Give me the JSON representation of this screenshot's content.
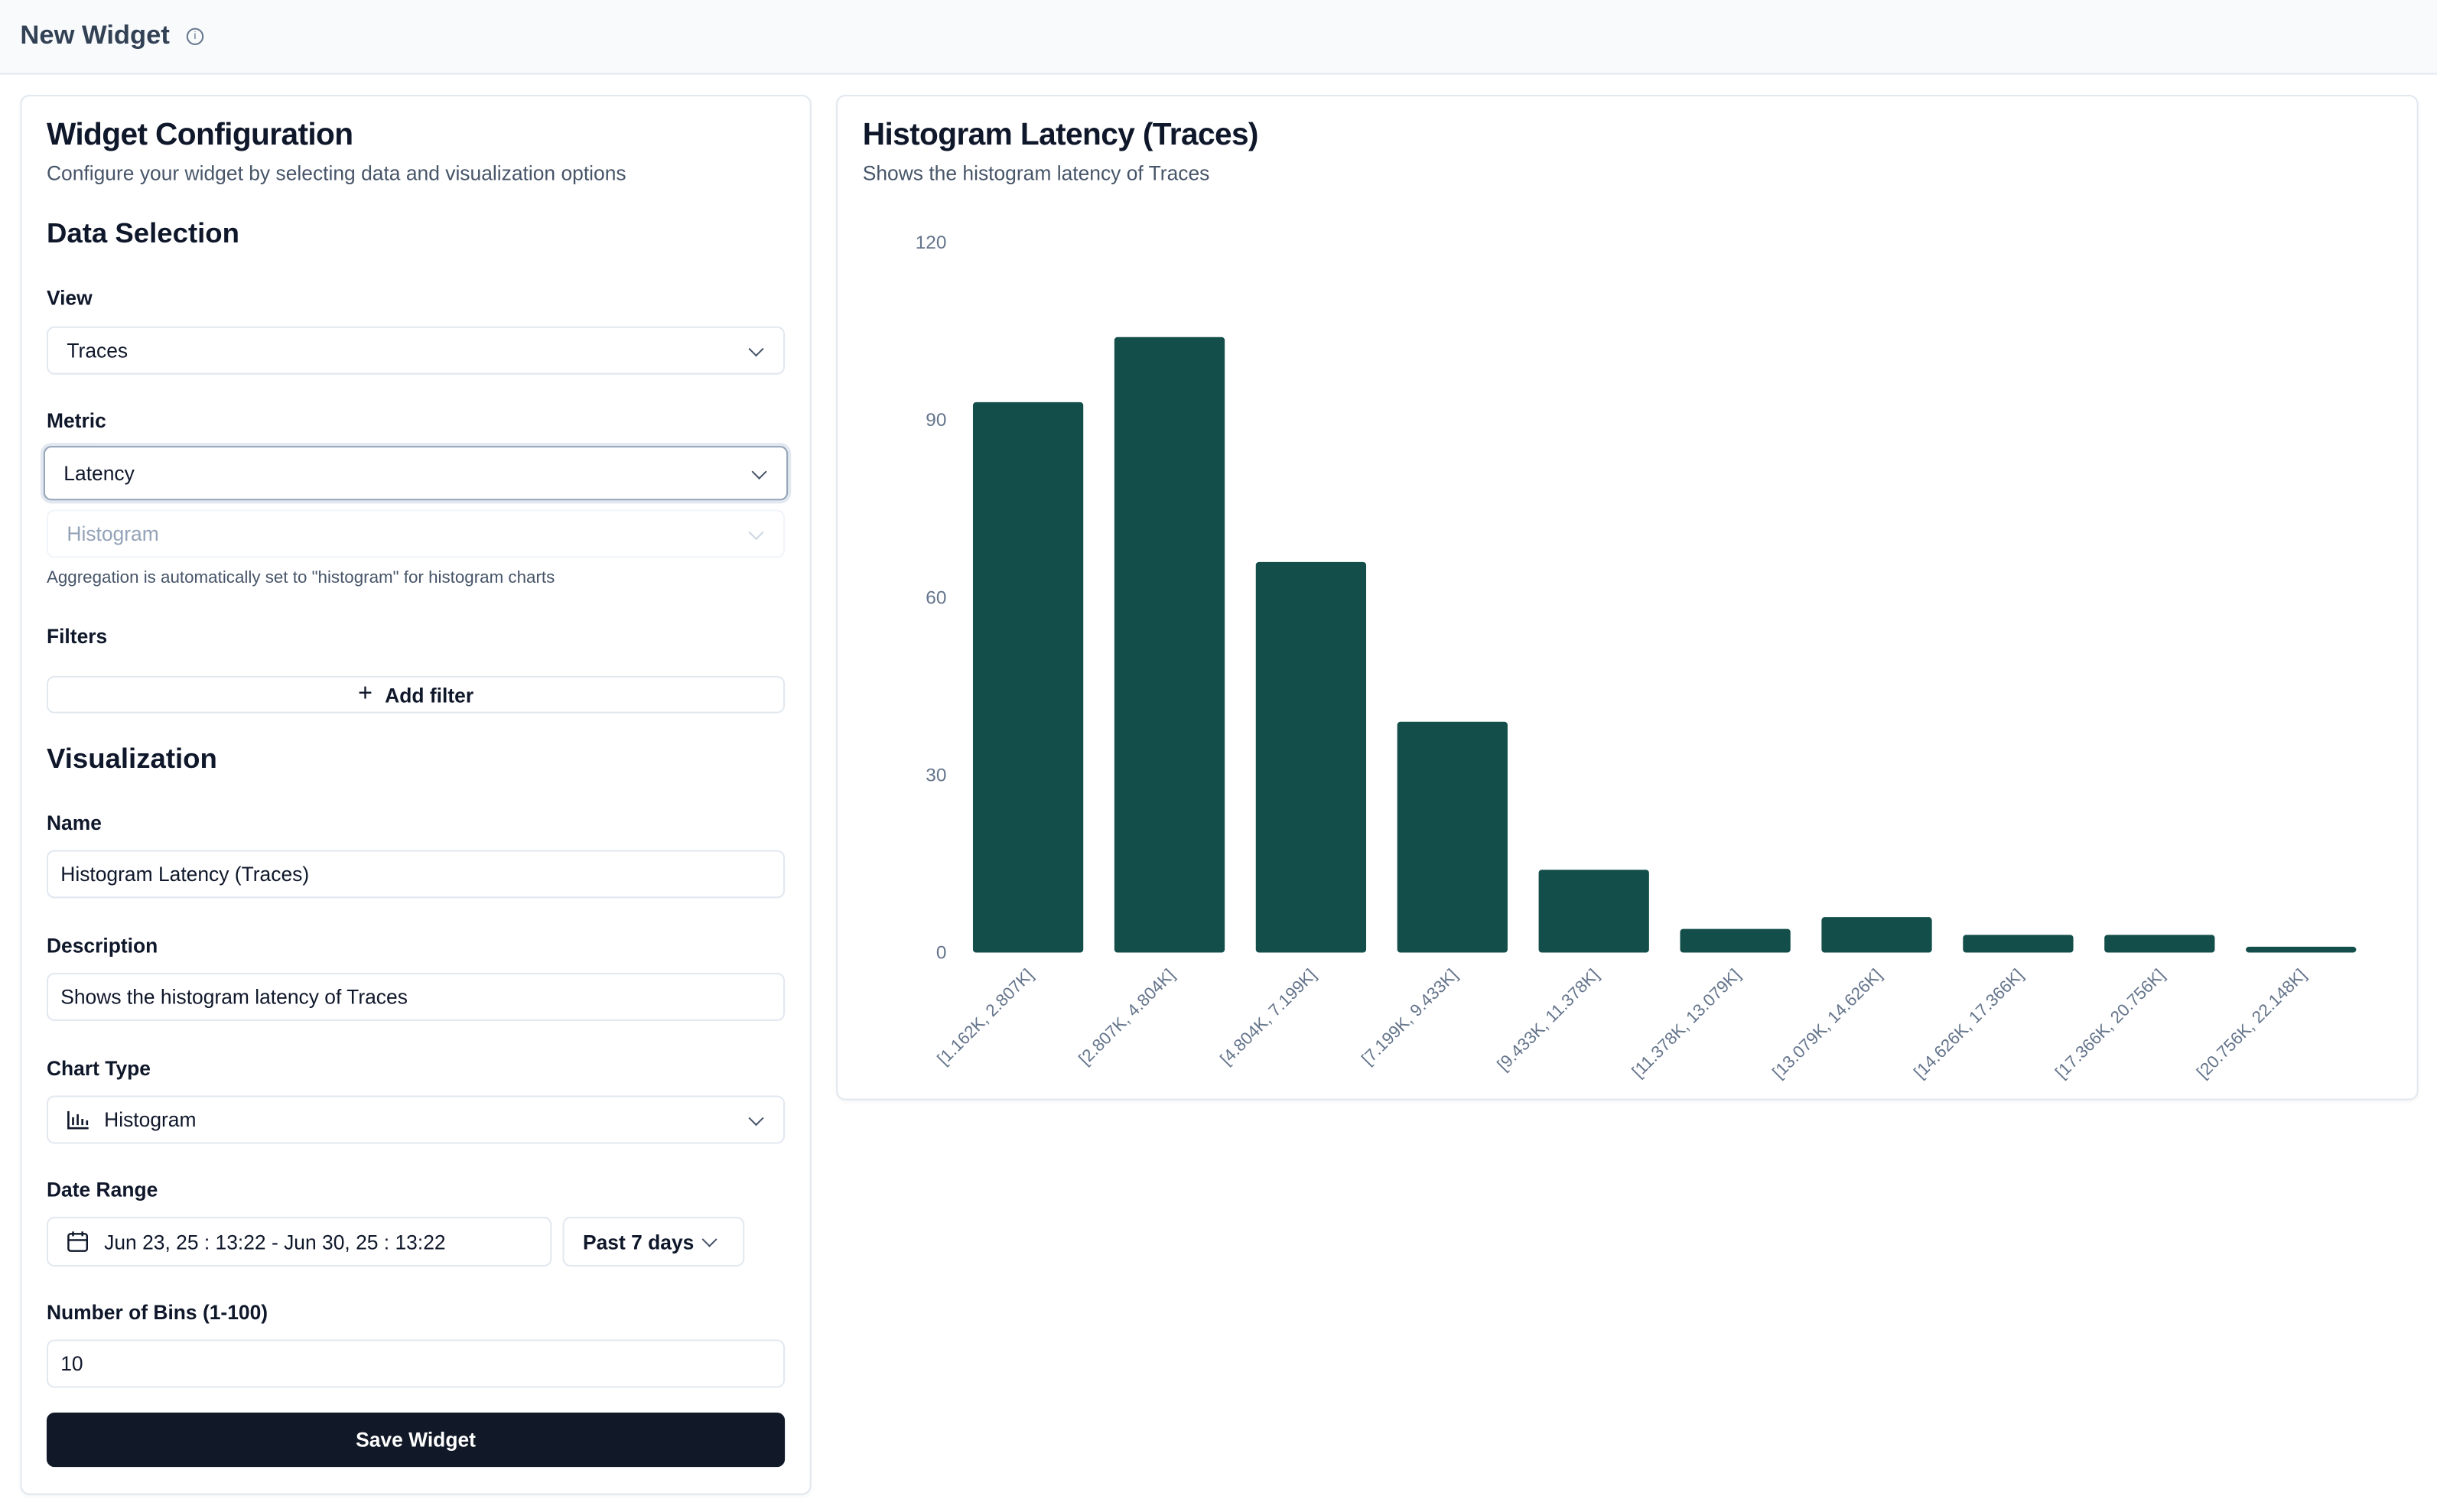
{
  "header": {
    "title": "New Widget",
    "info_icon": "info-icon"
  },
  "config": {
    "title": "Widget Configuration",
    "subtitle": "Configure your widget by selecting data and visualization options",
    "data_selection": "Data Selection",
    "view_label": "View",
    "view_value": "Traces",
    "metric_label": "Metric",
    "metric_value": "Latency",
    "aggregation_value": "Histogram",
    "aggregation_help": "Aggregation is automatically set to \"histogram\" for histogram charts",
    "filters_label": "Filters",
    "add_filter": "Add filter",
    "visualization": "Visualization",
    "name_label": "Name",
    "name_value": "Histogram Latency (Traces)",
    "description_label": "Description",
    "description_value": "Shows the histogram latency of Traces",
    "chart_type_label": "Chart Type",
    "chart_type_value": "Histogram",
    "date_range_label": "Date Range",
    "date_range_value": "Jun 23, 25 : 13:22 - Jun 30, 25 : 13:22",
    "date_preset": "Past 7 days",
    "bins_label": "Number of Bins (1-100)",
    "bins_value": "10",
    "save": "Save Widget"
  },
  "preview": {
    "title": "Histogram Latency (Traces)",
    "subtitle": "Shows the histogram latency of Traces"
  },
  "chart_data": {
    "type": "bar",
    "categories": [
      "[1.162K, 2.807K]",
      "[2.807K, 4.804K]",
      "[4.804K, 7.199K]",
      "[7.199K, 9.433K]",
      "[9.433K, 11.378K]",
      "[11.378K, 13.079K]",
      "[13.079K, 14.626K]",
      "[14.626K, 17.366K]",
      "[17.366K, 20.756K]",
      "[20.756K, 22.148K]"
    ],
    "values": [
      93,
      104,
      66,
      39,
      14,
      4,
      6,
      3,
      3,
      1
    ],
    "ylim": [
      0,
      120
    ],
    "yticks": [
      0,
      30,
      60,
      90,
      120
    ],
    "grid": false,
    "color": "#134e4a"
  }
}
